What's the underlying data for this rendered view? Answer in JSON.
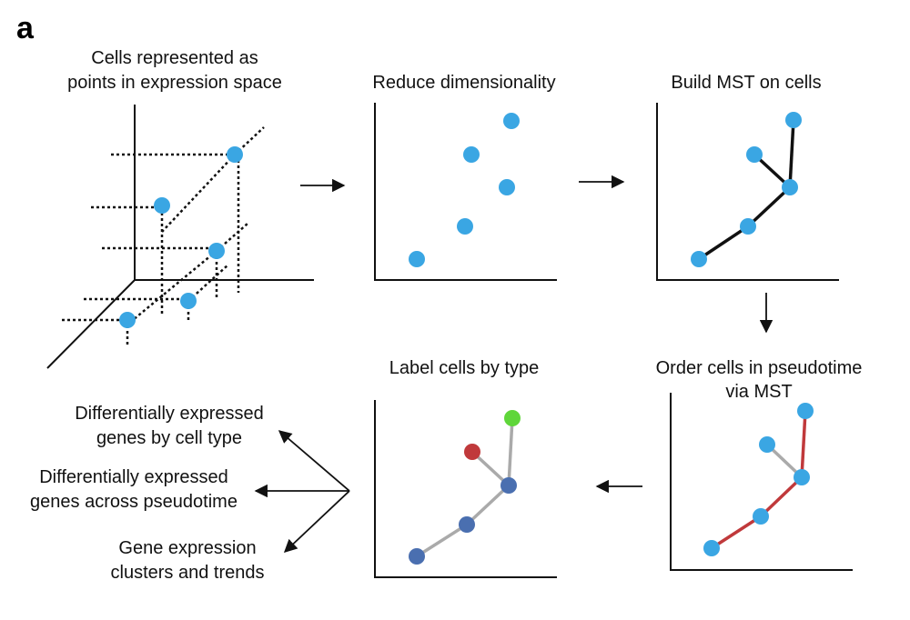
{
  "panel_letter": "a",
  "panels": {
    "expression_space": {
      "title_line1": "Cells represented as",
      "title_line2": "points in expression space"
    },
    "reduce": {
      "title": "Reduce dimensionality"
    },
    "mst": {
      "title": "Build MST on cells"
    },
    "pseudotime": {
      "title_line1": "Order cells in pseudotime",
      "title_line2": "via MST"
    },
    "label": {
      "title": "Label cells by type"
    }
  },
  "outputs": [
    {
      "line1": "Differentially expressed",
      "line2": "genes by cell type"
    },
    {
      "line1": "Differentially expressed",
      "line2": "genes across pseudotime"
    },
    {
      "line1": "Gene expression",
      "line2": "clusters and trends"
    }
  ],
  "colors": {
    "cell": "#3aa6e3",
    "mst_edge": "#111111",
    "pseudotime_edge": "#c0393b",
    "branch_edge": "#aaaaaa",
    "type_blue": "#4a6fb0",
    "type_red": "#c0393b",
    "type_green": "#5fd63a"
  }
}
